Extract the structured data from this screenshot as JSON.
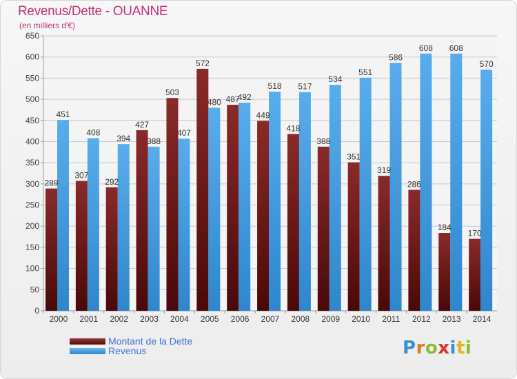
{
  "header": {
    "title": "Revenus/Dette - OUANNE",
    "subtitle": "(en milliers d'€)"
  },
  "chart_data": {
    "type": "bar",
    "categories": [
      "2000",
      "2001",
      "2002",
      "2003",
      "2004",
      "2005",
      "2006",
      "2007",
      "2008",
      "2009",
      "2010",
      "2011",
      "2012",
      "2013",
      "2014"
    ],
    "series": [
      {
        "name": "Montant de la Dette",
        "color": "#7a1c1c",
        "values": [
          289,
          307,
          292,
          427,
          503,
          572,
          487,
          449,
          418,
          388,
          351,
          319,
          286,
          184,
          170
        ]
      },
      {
        "name": "Revenus",
        "color": "#4da3e6",
        "values": [
          451,
          408,
          394,
          388,
          407,
          480,
          492,
          518,
          517,
          534,
          551,
          586,
          608,
          608,
          570
        ]
      }
    ],
    "ylim": [
      0,
      650
    ],
    "yticks": [
      0,
      50,
      100,
      150,
      200,
      250,
      300,
      350,
      400,
      450,
      500,
      550,
      600,
      650
    ],
    "grid": true,
    "legend_position": "bottom-left"
  },
  "legend": {
    "items": [
      {
        "label": "Montant de la Dette",
        "color": "#7a1c1c"
      },
      {
        "label": "Revenus",
        "color": "#4da3e6"
      }
    ]
  },
  "branding": {
    "logo_text": "Proxiti"
  }
}
